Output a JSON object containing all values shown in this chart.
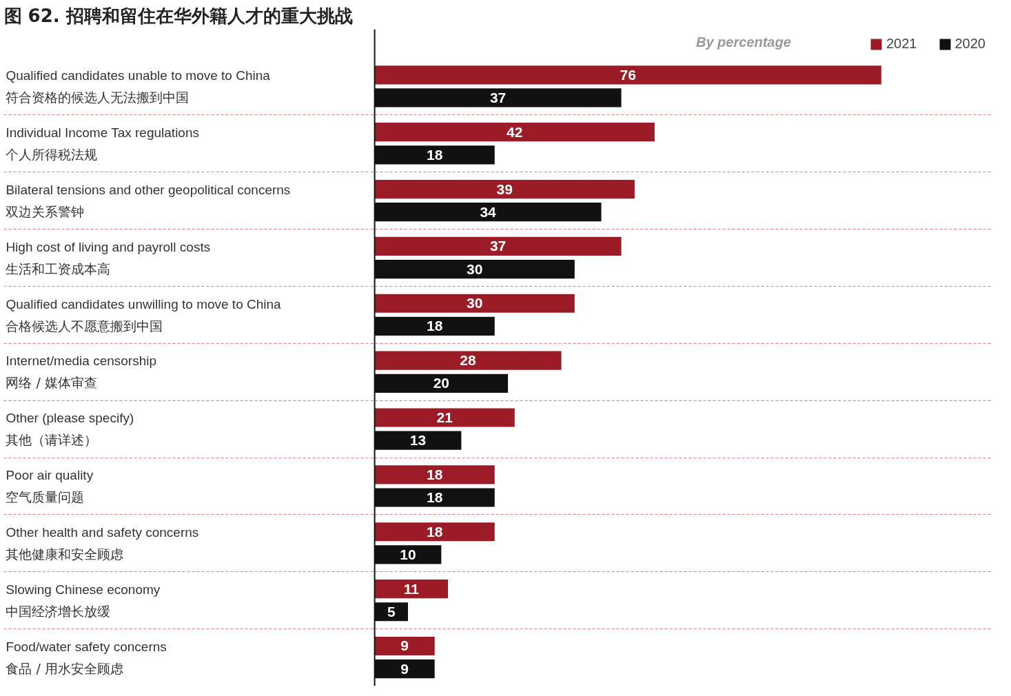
{
  "chart_data": {
    "type": "bar",
    "orientation": "horizontal",
    "title": "图 62. 招聘和留住在华外籍人才的重大挑战",
    "subtitle": "By percentage",
    "categories": [
      "Qualified candidates unable to move to China\n符合资格的候选人无法搬到中国",
      "Individual Income Tax regulations\n个人所得税法规",
      "Bilateral tensions and other geopolitical concerns\n双边关系警钟",
      "High cost of living and payroll costs\n生活和工资成本高",
      "Qualified candidates unwilling to move to China\n合格候选人不愿意搬到中国",
      "Internet/media censorship\n网络 / 媒体审查",
      "Other (please specify)\n其他（请详述）",
      "Poor air quality\n空气质量问题",
      "Other health and safety concerns\n其他健康和安全顾虑",
      "Slowing Chinese economy\n中国经济增长放缓",
      "Food/water safety concerns\n食品 / 用水安全顾虑"
    ],
    "series": [
      {
        "name": "2021",
        "color": "#9b1c26",
        "values": [
          76,
          42,
          39,
          37,
          30,
          28,
          21,
          18,
          18,
          11,
          9
        ]
      },
      {
        "name": "2020",
        "color": "#111111",
        "values": [
          37,
          18,
          34,
          30,
          18,
          20,
          13,
          18,
          10,
          5,
          9
        ]
      }
    ],
    "data_labels": true,
    "grid": "y",
    "legend": "top right"
  }
}
